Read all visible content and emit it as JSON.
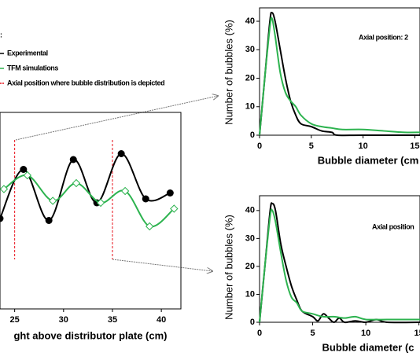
{
  "chart_data": [
    {
      "type": "line",
      "legend_title": ":",
      "legend_labels": [
        "Experimental",
        "TFM simulations",
        "Axial position where bubble distribution is depicted"
      ],
      "xlabel": "ght above distributor plate (cm)",
      "xlim": [
        23.5,
        42
      ],
      "ylim": [
        0,
        10
      ],
      "xticks": [
        25,
        30,
        35,
        40
      ],
      "positions": [
        25,
        35
      ],
      "position_color": "#e8101a",
      "series": [
        {
          "name": "Experimental",
          "color": "#000000",
          "marker": "circle",
          "x": [
            23.5,
            25.9,
            28.5,
            31,
            33.4,
            35.9,
            38.4,
            40.9
          ],
          "values": [
            4.6,
            7.1,
            4.5,
            7.6,
            5.4,
            7.9,
            5.6,
            5.9
          ]
        },
        {
          "name": "TFM simulations",
          "color": "#2db34f",
          "marker": "diamond",
          "x": [
            23.9,
            26.3,
            28.9,
            31.3,
            33.8,
            36.3,
            38.8,
            41.3
          ],
          "values": [
            6.1,
            6.8,
            5.5,
            6.4,
            5.4,
            6.0,
            4.2,
            5.1
          ]
        }
      ]
    },
    {
      "type": "line",
      "annotation": "Axial position: 2",
      "xlabel": "Bubble diameter (cm",
      "ylabel": "Number of bubbles  (%)",
      "xlim": [
        0,
        15.5
      ],
      "ylim": [
        0,
        44.7
      ],
      "xticks": [
        0,
        5,
        10,
        15
      ],
      "yticks": [
        0,
        10,
        20,
        30,
        40
      ],
      "series": [
        {
          "name": "Experimental",
          "color": "#000000",
          "x": [
            0,
            0.5,
            1,
            1.2,
            1.5,
            2,
            2.5,
            3,
            3.5,
            4,
            5,
            6,
            7,
            7.5,
            10,
            15.5
          ],
          "values": [
            0,
            20,
            40,
            43,
            40,
            30,
            20,
            12,
            7,
            4,
            3,
            1.5,
            1,
            0,
            0,
            0
          ]
        },
        {
          "name": "TFM simulations",
          "color": "#2db34f",
          "x": [
            0,
            0.5,
            1,
            1.2,
            1.5,
            2,
            2.5,
            3,
            3.5,
            4,
            5,
            6,
            7,
            8,
            10,
            12,
            14,
            15.5
          ],
          "values": [
            0,
            20,
            38,
            41,
            35,
            22,
            15,
            12,
            10,
            7,
            4,
            3,
            2.5,
            2,
            2,
            1.5,
            1,
            1
          ]
        }
      ]
    },
    {
      "type": "line",
      "annotation": "Axial position",
      "xlabel": "Bubble diameter (c",
      "ylabel": "Number of bubbles  (%)",
      "xlim": [
        0,
        15.1
      ],
      "ylim": [
        0,
        45.3
      ],
      "xticks": [
        0,
        5,
        10,
        15
      ],
      "yticks": [
        0,
        10,
        20,
        30,
        40
      ],
      "series": [
        {
          "name": "Experimental",
          "color": "#000000",
          "x": [
            0,
            0.5,
            1,
            1.2,
            1.5,
            2,
            2.5,
            3,
            3.5,
            4,
            5,
            5.5,
            6,
            6.5,
            7,
            7.5,
            8,
            9,
            10,
            11,
            12,
            15.1
          ],
          "values": [
            0,
            20,
            40,
            42.5,
            40,
            28,
            20,
            13,
            8,
            4,
            2,
            0.5,
            3,
            1.5,
            0,
            1.5,
            0,
            0.5,
            0,
            1,
            0,
            0
          ]
        },
        {
          "name": "TFM simulations",
          "color": "#2db34f",
          "x": [
            0,
            0.5,
            1,
            1.2,
            1.5,
            2,
            2.5,
            3,
            3.5,
            4,
            5,
            6,
            7,
            8,
            9,
            10,
            12,
            15.1
          ],
          "values": [
            0,
            20,
            38,
            40,
            36,
            25,
            15,
            9,
            7,
            4,
            3,
            2,
            2,
            1.5,
            2,
            1,
            1,
            1
          ]
        }
      ]
    }
  ]
}
